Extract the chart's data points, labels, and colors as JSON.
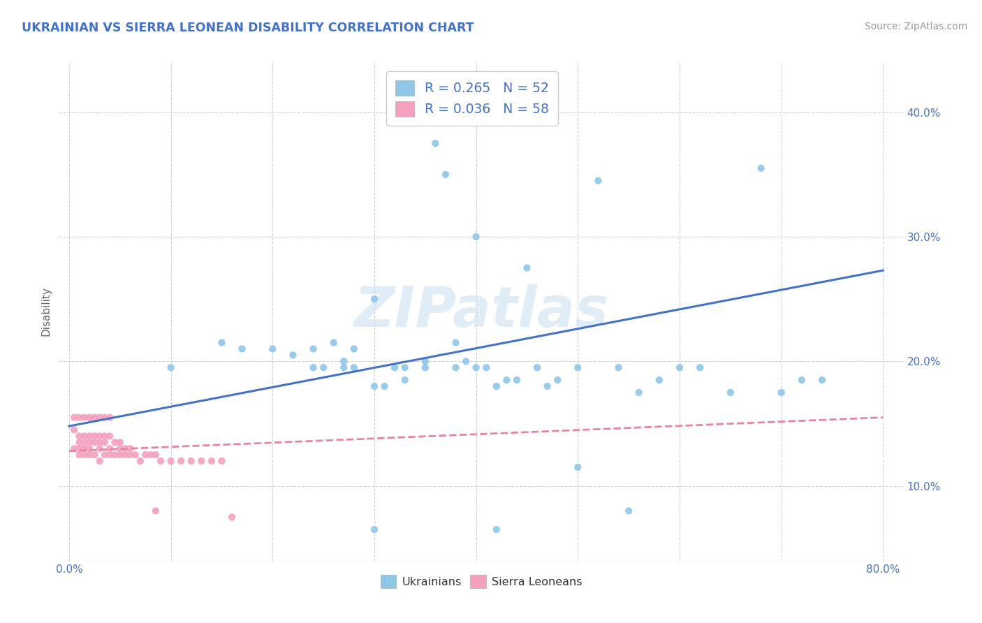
{
  "title": "UKRAINIAN VS SIERRA LEONEAN DISABILITY CORRELATION CHART",
  "source_text": "Source: ZipAtlas.com",
  "ylabel": "Disability",
  "xlim": [
    -0.01,
    0.82
  ],
  "ylim": [
    0.04,
    0.44
  ],
  "xtick_positions": [
    0.0,
    0.8
  ],
  "xtick_labels": [
    "0.0%",
    "80.0%"
  ],
  "ytick_positions": [
    0.1,
    0.2,
    0.3,
    0.4
  ],
  "ytick_labels": [
    "10.0%",
    "20.0%",
    "30.0%",
    "40.0%"
  ],
  "grid_hlines": [
    0.1,
    0.2,
    0.3,
    0.4
  ],
  "grid_vlines": [
    0.0,
    0.1,
    0.2,
    0.3,
    0.4,
    0.5,
    0.6,
    0.7,
    0.8
  ],
  "blue_color": "#8EC6E8",
  "pink_color": "#F4A0BE",
  "blue_line_color": "#4472C4",
  "pink_line_color": "#E8849D",
  "grid_color": "#D0D0D0",
  "watermark": "ZIPatlas",
  "legend_r1": "R = 0.265",
  "legend_n1": "N = 52",
  "legend_r2": "R = 0.036",
  "legend_n2": "N = 58",
  "legend_label1": "Ukrainians",
  "legend_label2": "Sierra Leoneans",
  "blue_x": [
    0.1,
    0.15,
    0.17,
    0.2,
    0.22,
    0.24,
    0.24,
    0.25,
    0.26,
    0.27,
    0.27,
    0.28,
    0.28,
    0.3,
    0.3,
    0.31,
    0.32,
    0.33,
    0.33,
    0.35,
    0.35,
    0.36,
    0.37,
    0.38,
    0.38,
    0.39,
    0.4,
    0.4,
    0.41,
    0.42,
    0.43,
    0.44,
    0.45,
    0.46,
    0.47,
    0.48,
    0.5,
    0.52,
    0.54,
    0.56,
    0.58,
    0.6,
    0.62,
    0.65,
    0.68,
    0.7,
    0.72,
    0.74,
    0.3,
    0.42,
    0.5,
    0.55
  ],
  "blue_y": [
    0.195,
    0.215,
    0.21,
    0.21,
    0.205,
    0.21,
    0.195,
    0.195,
    0.215,
    0.2,
    0.195,
    0.195,
    0.21,
    0.25,
    0.18,
    0.18,
    0.195,
    0.195,
    0.185,
    0.2,
    0.195,
    0.375,
    0.35,
    0.215,
    0.195,
    0.2,
    0.3,
    0.195,
    0.195,
    0.18,
    0.185,
    0.185,
    0.275,
    0.195,
    0.18,
    0.185,
    0.195,
    0.345,
    0.195,
    0.175,
    0.185,
    0.195,
    0.195,
    0.175,
    0.355,
    0.175,
    0.185,
    0.185,
    0.065,
    0.065,
    0.115,
    0.08
  ],
  "pink_x": [
    0.005,
    0.005,
    0.01,
    0.01,
    0.01,
    0.01,
    0.015,
    0.015,
    0.015,
    0.015,
    0.02,
    0.02,
    0.02,
    0.02,
    0.025,
    0.025,
    0.025,
    0.03,
    0.03,
    0.03,
    0.03,
    0.035,
    0.035,
    0.035,
    0.04,
    0.04,
    0.04,
    0.045,
    0.045,
    0.05,
    0.05,
    0.05,
    0.055,
    0.055,
    0.06,
    0.06,
    0.065,
    0.07,
    0.075,
    0.08,
    0.085,
    0.09,
    0.1,
    0.11,
    0.12,
    0.13,
    0.14,
    0.15,
    0.16,
    0.005,
    0.01,
    0.015,
    0.02,
    0.025,
    0.03,
    0.035,
    0.04,
    0.085
  ],
  "pink_y": [
    0.145,
    0.13,
    0.14,
    0.135,
    0.13,
    0.125,
    0.14,
    0.135,
    0.13,
    0.125,
    0.14,
    0.135,
    0.13,
    0.125,
    0.14,
    0.135,
    0.125,
    0.14,
    0.135,
    0.13,
    0.12,
    0.14,
    0.135,
    0.125,
    0.14,
    0.13,
    0.125,
    0.135,
    0.125,
    0.135,
    0.13,
    0.125,
    0.13,
    0.125,
    0.13,
    0.125,
    0.125,
    0.12,
    0.125,
    0.125,
    0.125,
    0.12,
    0.12,
    0.12,
    0.12,
    0.12,
    0.12,
    0.12,
    0.075,
    0.155,
    0.155,
    0.155,
    0.155,
    0.155,
    0.155,
    0.155,
    0.155,
    0.08
  ],
  "blue_trend_x": [
    0.0,
    0.8
  ],
  "blue_trend_y": [
    0.148,
    0.273
  ],
  "pink_trend_x": [
    0.0,
    0.8
  ],
  "pink_trend_y": [
    0.128,
    0.155
  ]
}
